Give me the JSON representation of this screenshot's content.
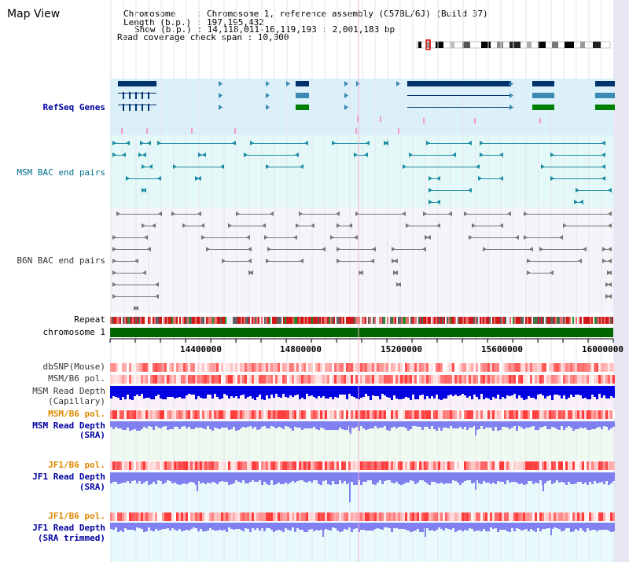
{
  "title": "Map View",
  "info": {
    "chromosome": "Chromosome    : Chromosome 1, reference assembly (C57BL/6J) (Build 37)",
    "length": "Length (b.p.) : 197,195,432",
    "show": "Show (b.p.) : 14,118,011-16,119,193 : 2,001,183 bp",
    "coverage": "Read coverage check span : 10,000"
  },
  "tracks": {
    "refseq": "RefSeq Genes",
    "msm_bac": "MSM BAC end pairs",
    "b6n_bac": "B6N BAC end pairs",
    "repeat": "Repeat",
    "chromosome": "chromosome 1",
    "dbsnp": "dbSNP(Mouse)",
    "msm_b6_pol_1": "MSM/B6 pol.",
    "msm_read_depth_cap_1": "MSM Read Depth",
    "msm_read_depth_cap_2": "(Capillary)",
    "msm_b6_pol_2": "MSM/B6 pol.",
    "msm_read_depth_sra_1": "MSM Read Depth",
    "msm_read_depth_sra_2": "(SRA)",
    "jf1_b6_pol_1": "JF1/B6 pol.",
    "jf1_read_depth_sra_1": "JF1 Read Depth",
    "jf1_read_depth_sra_2": "(SRA)",
    "jf1_b6_pol_2": "JF1/B6 pol.",
    "jf1_read_depth_trim_1": "JF1 Read Depth",
    "jf1_read_depth_trim_2": "(SRA trimmed)"
  },
  "axis": {
    "ticks": [
      "14400000",
      "14800000",
      "15200000",
      "15600000",
      "16000000"
    ]
  },
  "colors": {
    "refseq_bg": "#dcf0fa",
    "msm_bg": "#e4f8f8",
    "b6n_bg": "#f4f4fa",
    "chromosome_bar": "#006600",
    "gene_dark": "#00336e",
    "gene_mid": "#3a8ab4",
    "gene_green": "#008000",
    "depth_capillary": "#0000e0",
    "depth_sra": "#8080f0",
    "label_blue": "#0000a0",
    "label_orange": "#e08800"
  }
}
